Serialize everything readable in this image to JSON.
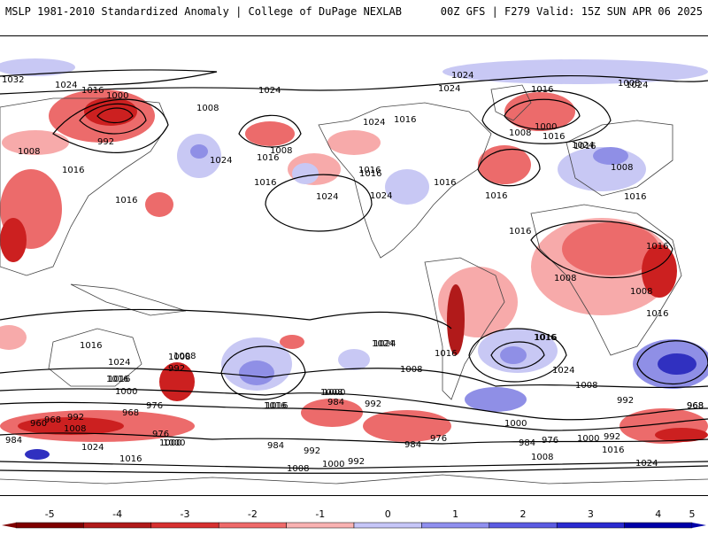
{
  "header": {
    "title": "MSLP 1981-2010 Standardized Anomaly | College of DuPage NEXLAB",
    "run": "00Z GFS | F279 Valid: 15Z SUN APR 06 2025"
  },
  "colorbar": {
    "ticks": [
      "-5",
      "-4",
      "-3",
      "-2",
      "-1",
      "0",
      "1",
      "2",
      "3",
      "4",
      "5"
    ],
    "colors": [
      "#7f0000",
      "#b11a1a",
      "#d73030",
      "#ef6a6a",
      "#f9b2b2",
      "#ffffff",
      "#c6c6f7",
      "#9090ef",
      "#5c5ce2",
      "#2b2bd0",
      "#0000a8"
    ]
  },
  "colors": {
    "negative_strong": "#cc2020",
    "negative_mid": "#ec6b6b",
    "negative_light": "#f7aaaa",
    "positive_light": "#c8c8f4",
    "positive_mid": "#8f8fe6",
    "positive_strong": "#3030c0",
    "contour": "#000000",
    "coast": "#444444"
  },
  "contour_labels": [
    "1032",
    "1024",
    "1016",
    "1000",
    "1008",
    "992",
    "1016",
    "1008",
    "1016",
    "1024",
    "1016",
    "1024",
    "1024",
    "1008",
    "1016",
    "1016",
    "1024",
    "1016",
    "1024",
    "1016",
    "1008",
    "1016",
    "1024",
    "1016",
    "1016",
    "1016",
    "1024",
    "1016",
    "1008",
    "1000",
    "1016",
    "1008",
    "1016",
    "1024",
    "1016",
    "1024",
    "1016",
    "1008",
    "1024",
    "1016",
    "1008",
    "1016",
    "1008",
    "1008",
    "1008",
    "1016",
    "1016",
    "1008",
    "1016",
    "1024",
    "1024",
    "1016",
    "1008",
    "992",
    "1000",
    "984",
    "1016",
    "1024",
    "1016",
    "992",
    "976",
    "1000",
    "992",
    "968",
    "968",
    "984",
    "1008",
    "960",
    "992",
    "968",
    "976",
    "984",
    "1000",
    "1016",
    "1024",
    "1008",
    "984",
    "992",
    "1008",
    "1000",
    "992",
    "1000",
    "984",
    "976",
    "1000",
    "992",
    "1016",
    "1024",
    "1000",
    "976",
    "968"
  ]
}
